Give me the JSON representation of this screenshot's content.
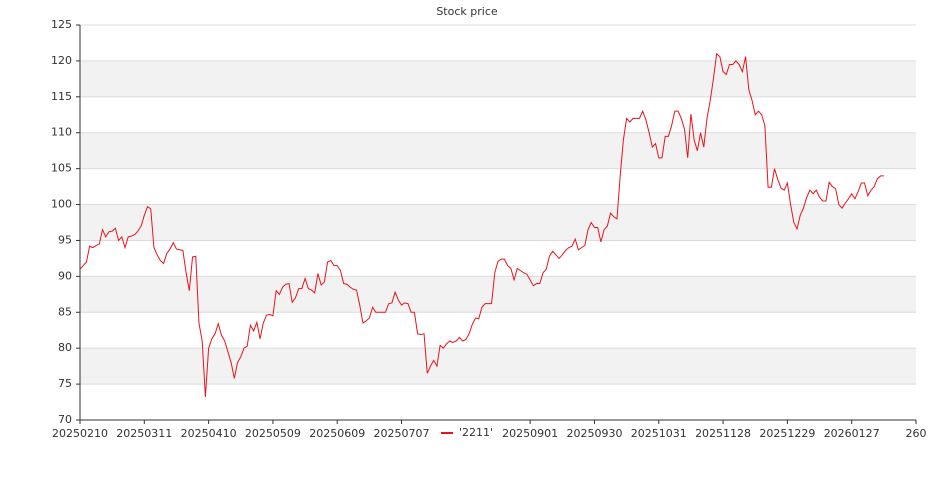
{
  "chart_data": {
    "type": "line",
    "title": "Stock price",
    "series": [
      {
        "name": "'2211'",
        "color": "#e8141c",
        "values": [
          91,
          91.5,
          92,
          94.2,
          94,
          94.3,
          94.5,
          96.5,
          95.5,
          96.2,
          96.3,
          96.7,
          95,
          95.5,
          94,
          95.5,
          95.6,
          95.8,
          96.3,
          97,
          98.5,
          99.7,
          99.4,
          94,
          93,
          92.2,
          91.8,
          93.2,
          93.8,
          94.7,
          93.8,
          93.7,
          93.6,
          90.5,
          88,
          92.7,
          92.8,
          83.5,
          81,
          73.2,
          80,
          81.3,
          82,
          83.4,
          81.8,
          81,
          79.5,
          78,
          75.8,
          78,
          78.8,
          80,
          80.3,
          83.2,
          82.4,
          83.6,
          81.3,
          83.5,
          84.6,
          84.7,
          84.5,
          88,
          87.5,
          88.5,
          88.9,
          89,
          86.4,
          87,
          88.3,
          88.3,
          89.7,
          88.3,
          88.1,
          87.7,
          90.4,
          88.8,
          89.2,
          92,
          92.2,
          91.5,
          91.5,
          90.8,
          89,
          88.9,
          88.5,
          88.2,
          88.1,
          86,
          83.5,
          83.8,
          84.2,
          85.7,
          85,
          85,
          85,
          85,
          86.2,
          86.3,
          87.8,
          86.7,
          86,
          86.3,
          86.2,
          85,
          85,
          82,
          81.9,
          82,
          76.5,
          77.5,
          78.3,
          77.5,
          80.4,
          80,
          80.6,
          81,
          80.8,
          81,
          81.5,
          81,
          81.2,
          82,
          83.3,
          84.2,
          84.1,
          85.7,
          86.2,
          86.2,
          86.2,
          90.5,
          92.1,
          92.4,
          92.4,
          91.5,
          91.1,
          89.5,
          91.1,
          90.8,
          90.5,
          90.3,
          89.5,
          88.7,
          89,
          89,
          90.5,
          91,
          92.8,
          93.5,
          93,
          92.5,
          93,
          93.6,
          94,
          94.2,
          95.2,
          93.7,
          94,
          94.3,
          96.5,
          97.5,
          96.8,
          96.8,
          94.8,
          96.5,
          97,
          98.8,
          98.3,
          98,
          104,
          109,
          112,
          111.5,
          112,
          112,
          112,
          113,
          111.8,
          110,
          108,
          108.5,
          106.5,
          106.5,
          109.5,
          109.5,
          111,
          113,
          113,
          112,
          110.5,
          106.5,
          112.6,
          109,
          107.5,
          110,
          108,
          112,
          114.5,
          117.5,
          121,
          120.6,
          118.5,
          118.1,
          119.5,
          119.5,
          120,
          119.5,
          118.5,
          120.6,
          116,
          114.5,
          112.5,
          113,
          112.5,
          111,
          102.4,
          102.4,
          105,
          103.5,
          102.3,
          102,
          103,
          100,
          97.5,
          96.6,
          98.5,
          99.5,
          101,
          102,
          101.5,
          102,
          101,
          100.5,
          100.5,
          103.1,
          102.5,
          102.2,
          100,
          99.5,
          100.2,
          100.8,
          101.5,
          100.8,
          101.8,
          103,
          103,
          101.2,
          102,
          102.5,
          103.6,
          104,
          104
        ]
      }
    ],
    "xlim": [
      0,
      260
    ],
    "xticks": [
      {
        "value": 0,
        "label": "20250210"
      },
      {
        "value": 20,
        "label": "20250311"
      },
      {
        "value": 40,
        "label": "20250410"
      },
      {
        "value": 60,
        "label": "20250509"
      },
      {
        "value": 80,
        "label": "20250609"
      },
      {
        "value": 100,
        "label": "20250707"
      },
      {
        "value": 140,
        "label": "20250901"
      },
      {
        "value": 160,
        "label": "20250930"
      },
      {
        "value": 180,
        "label": "20251031"
      },
      {
        "value": 200,
        "label": "20251128"
      },
      {
        "value": 220,
        "label": "20251229"
      },
      {
        "value": 240,
        "label": "20260127"
      },
      {
        "value": 260,
        "label": "260"
      }
    ],
    "ylim": [
      70,
      125
    ],
    "yticks": [
      70,
      75,
      80,
      85,
      90,
      95,
      100,
      105,
      110,
      115,
      120,
      125
    ],
    "grid": true,
    "legend": "bottom"
  }
}
